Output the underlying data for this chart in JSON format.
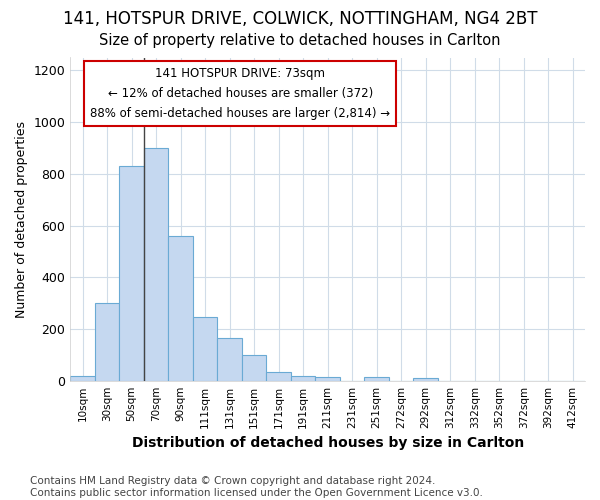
{
  "title1": "141, HOTSPUR DRIVE, COLWICK, NOTTINGHAM, NG4 2BT",
  "title2": "Size of property relative to detached houses in Carlton",
  "xlabel": "Distribution of detached houses by size in Carlton",
  "ylabel": "Number of detached properties",
  "categories": [
    "10sqm",
    "30sqm",
    "50sqm",
    "70sqm",
    "90sqm",
    "111sqm",
    "131sqm",
    "151sqm",
    "171sqm",
    "191sqm",
    "211sqm",
    "231sqm",
    "251sqm",
    "272sqm",
    "292sqm",
    "312sqm",
    "332sqm",
    "352sqm",
    "372sqm",
    "392sqm",
    "412sqm"
  ],
  "values": [
    20,
    300,
    830,
    900,
    560,
    245,
    165,
    100,
    35,
    20,
    15,
    0,
    15,
    0,
    10,
    0,
    0,
    0,
    0,
    0,
    0
  ],
  "bar_color": "#c5d8f0",
  "bar_edge_color": "#6aaad4",
  "background_color": "#ffffff",
  "grid_color": "#d0dce8",
  "annotation_text": "141 HOTSPUR DRIVE: 73sqm\n← 12% of detached houses are smaller (372)\n88% of semi-detached houses are larger (2,814) →",
  "annotation_box_color": "#ffffff",
  "annotation_box_edge_color": "#cc0000",
  "vline_x_index": 2.5,
  "ylim": [
    0,
    1250
  ],
  "yticks": [
    0,
    200,
    400,
    600,
    800,
    1000,
    1200
  ],
  "footer": "Contains HM Land Registry data © Crown copyright and database right 2024.\nContains public sector information licensed under the Open Government Licence v3.0.",
  "title1_fontsize": 12,
  "title2_fontsize": 10.5,
  "xlabel_fontsize": 10,
  "ylabel_fontsize": 9,
  "footer_fontsize": 7.5
}
